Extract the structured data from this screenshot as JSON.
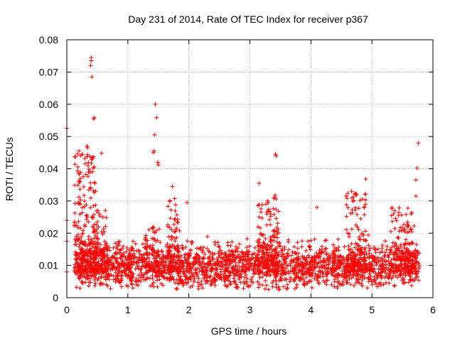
{
  "chart_data": {
    "type": "scatter",
    "title": "Day 231 of 2014, Rate Of TEC Index for receiver p367",
    "xlabel": "GPS time / hours",
    "ylabel": "ROTI / TECUs",
    "xlim": [
      0,
      6
    ],
    "ylim": [
      0,
      0.08
    ],
    "xticks": [
      "0",
      "1",
      "2",
      "3",
      "4",
      "5",
      "6"
    ],
    "xtick_values": [
      0,
      1,
      2,
      3,
      4,
      5,
      6
    ],
    "yticks": [
      "0",
      "0.01",
      "0.02",
      "0.03",
      "0.04",
      "0.05",
      "0.06",
      "0.07",
      "0.08"
    ],
    "ytick_values": [
      0,
      0.01,
      0.02,
      0.03,
      0.04,
      0.05,
      0.06,
      0.07,
      0.08
    ],
    "grid": true,
    "marker": "+",
    "marker_color": "#ff0000",
    "notable_points": [
      {
        "x": 0.0,
        "y": 0.0525
      },
      {
        "x": 0.0,
        "y": 0.024
      },
      {
        "x": 0.0,
        "y": 0.0175
      },
      {
        "x": 0.0,
        "y": 0.008
      },
      {
        "x": 0.4,
        "y": 0.0745
      },
      {
        "x": 0.4,
        "y": 0.0735
      },
      {
        "x": 0.39,
        "y": 0.072
      },
      {
        "x": 0.41,
        "y": 0.0685
      },
      {
        "x": 0.44,
        "y": 0.0555
      },
      {
        "x": 0.45,
        "y": 0.0558
      },
      {
        "x": 0.33,
        "y": 0.047
      },
      {
        "x": 0.34,
        "y": 0.0465
      },
      {
        "x": 0.2,
        "y": 0.0455
      },
      {
        "x": 0.57,
        "y": 0.0448
      },
      {
        "x": 1.45,
        "y": 0.06
      },
      {
        "x": 1.47,
        "y": 0.0558
      },
      {
        "x": 1.44,
        "y": 0.0505
      },
      {
        "x": 1.43,
        "y": 0.0455
      },
      {
        "x": 1.42,
        "y": 0.045
      },
      {
        "x": 1.49,
        "y": 0.042
      },
      {
        "x": 1.5,
        "y": 0.0412
      },
      {
        "x": 1.73,
        "y": 0.0345
      },
      {
        "x": 1.97,
        "y": 0.0295
      },
      {
        "x": 3.15,
        "y": 0.0355
      },
      {
        "x": 3.42,
        "y": 0.0445
      },
      {
        "x": 3.43,
        "y": 0.044
      },
      {
        "x": 4.1,
        "y": 0.028
      },
      {
        "x": 4.9,
        "y": 0.0368
      },
      {
        "x": 5.76,
        "y": 0.048
      },
      {
        "x": 5.74,
        "y": 0.0402
      },
      {
        "x": 5.72,
        "y": 0.0365
      },
      {
        "x": 5.72,
        "y": 0.0315
      }
    ],
    "dense_band": {
      "x_start": 0.15,
      "x_end": 5.78,
      "y_center": 0.01,
      "y_min": 0.0025,
      "y_max": 0.02,
      "density_per_hour": 420
    },
    "bursts": [
      {
        "x_center": 0.3,
        "x_width": 0.35,
        "y_max": 0.045,
        "count": 220
      },
      {
        "x_center": 0.55,
        "x_width": 0.2,
        "y_max": 0.028,
        "count": 90
      },
      {
        "x_center": 1.4,
        "x_width": 0.25,
        "y_max": 0.022,
        "count": 60
      },
      {
        "x_center": 1.75,
        "x_width": 0.2,
        "y_max": 0.032,
        "count": 70
      },
      {
        "x_center": 3.3,
        "x_width": 0.35,
        "y_max": 0.032,
        "count": 120
      },
      {
        "x_center": 4.75,
        "x_width": 0.35,
        "y_max": 0.033,
        "count": 110
      },
      {
        "x_center": 5.5,
        "x_width": 0.45,
        "y_max": 0.028,
        "count": 120
      }
    ]
  }
}
